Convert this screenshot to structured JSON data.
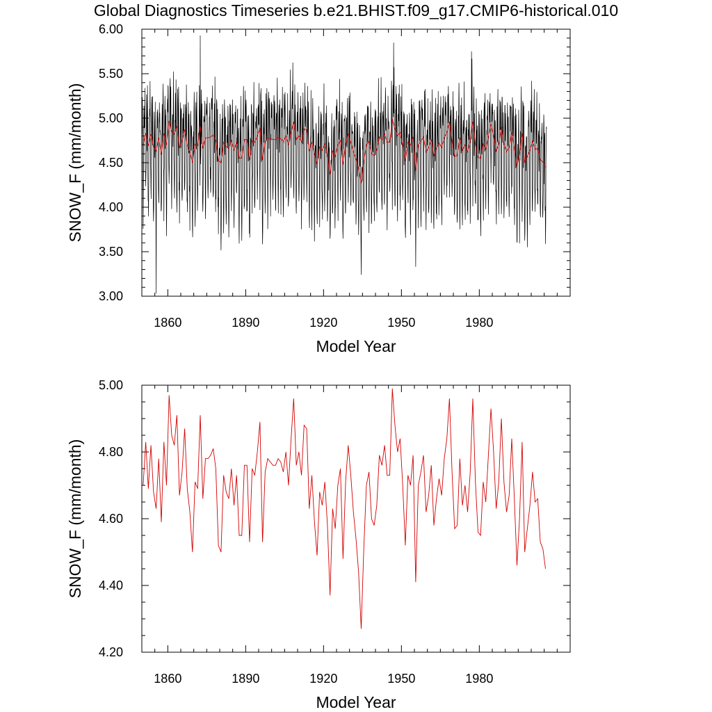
{
  "title": "Global Diagnostics Timeseries b.e21.BHIST.f09_g17.CMIP6-historical.010",
  "colors": {
    "monthly": "#000000",
    "annual": "#d40000",
    "axis": "#000000"
  },
  "chart_data": [
    {
      "type": "line",
      "xlabel": "Model Year",
      "ylabel": "SNOW_F (mm/month)",
      "xlim": [
        1850,
        2015
      ],
      "ylim": [
        3.0,
        6.0
      ],
      "xticks": [
        1860,
        1890,
        1920,
        1950,
        1980
      ],
      "xtick_labels": [
        "1860",
        "1890",
        "1920",
        "1950",
        "1980"
      ],
      "yticks": [
        3.0,
        3.5,
        4.0,
        4.5,
        5.0,
        5.5,
        6.0
      ],
      "ytick_labels": [
        "3.00",
        "3.50",
        "4.00",
        "4.50",
        "5.00",
        "5.50",
        "6.00"
      ],
      "series": [
        {
          "role": "monthly",
          "color": "#000000",
          "x_start": 1850,
          "x_step": 0.0833333,
          "monthly_pattern": [
            4.78,
            4.95,
            5.2,
            4.9,
            4.45,
            4.15,
            3.95,
            4.1,
            4.55,
            4.9,
            5.05,
            5.0
          ]
        },
        {
          "role": "annual",
          "color": "#d40000",
          "x_start": 1850.5,
          "x_step": 1,
          "values_ref": "annual_mean"
        }
      ],
      "monthly_extremes": [
        [
          1855.5,
          3.03
        ],
        [
          1872.5,
          5.93
        ],
        [
          1934.5,
          3.24
        ],
        [
          1947.0,
          5.85
        ],
        [
          1955.5,
          3.33
        ],
        [
          1977.0,
          5.75
        ]
      ],
      "grid": false
    },
    {
      "type": "line",
      "xlabel": "Model Year",
      "ylabel": "SNOW_F (mm/month)",
      "xlim": [
        1850,
        2015
      ],
      "ylim": [
        4.2,
        5.0
      ],
      "xticks": [
        1860,
        1890,
        1920,
        1950,
        1980
      ],
      "xtick_labels": [
        "1860",
        "1890",
        "1920",
        "1950",
        "1980"
      ],
      "yticks": [
        4.2,
        4.4,
        4.6,
        4.8,
        5.0
      ],
      "ytick_labels": [
        "4.20",
        "4.40",
        "4.60",
        "4.80",
        "5.00"
      ],
      "series": [
        {
          "role": "annual",
          "color": "#d40000",
          "x_start": 1850.5,
          "x_step": 1,
          "values_ref": "annual_mean"
        }
      ],
      "grid": false
    }
  ],
  "annual_mean": [
    4.7,
    4.83,
    4.69,
    4.82,
    4.68,
    4.63,
    4.78,
    4.59,
    4.83,
    4.7,
    4.97,
    4.85,
    4.82,
    4.91,
    4.67,
    4.74,
    4.87,
    4.69,
    4.62,
    4.5,
    4.71,
    4.69,
    4.91,
    4.66,
    4.78,
    4.78,
    4.79,
    4.81,
    4.75,
    4.52,
    4.5,
    4.73,
    4.68,
    4.66,
    4.75,
    4.64,
    4.73,
    4.55,
    4.55,
    4.76,
    4.76,
    4.53,
    4.75,
    4.73,
    4.8,
    4.89,
    4.53,
    4.74,
    4.78,
    4.77,
    4.76,
    4.76,
    4.78,
    4.77,
    4.74,
    4.8,
    4.7,
    4.84,
    4.96,
    4.76,
    4.8,
    4.73,
    4.88,
    4.87,
    4.63,
    4.73,
    4.59,
    4.49,
    4.68,
    4.64,
    4.71,
    4.58,
    4.37,
    4.63,
    4.57,
    4.7,
    4.75,
    4.48,
    4.71,
    4.82,
    4.73,
    4.62,
    4.54,
    4.44,
    4.27,
    4.51,
    4.7,
    4.74,
    4.6,
    4.58,
    4.64,
    4.79,
    4.76,
    4.82,
    4.73,
    4.73,
    4.99,
    4.88,
    4.8,
    4.84,
    4.7,
    4.52,
    4.73,
    4.7,
    4.79,
    4.41,
    4.7,
    4.74,
    4.79,
    4.62,
    4.67,
    4.76,
    4.58,
    4.66,
    4.72,
    4.67,
    4.78,
    4.84,
    4.96,
    4.74,
    4.57,
    4.58,
    4.78,
    4.64,
    4.7,
    4.62,
    4.74,
    4.96,
    4.71,
    4.56,
    4.55,
    4.71,
    4.65,
    4.79,
    4.93,
    4.8,
    4.63,
    4.71,
    4.9,
    4.71,
    4.62,
    4.67,
    4.84,
    4.66,
    4.46,
    4.6,
    4.83,
    4.5,
    4.57,
    4.64,
    4.74,
    4.65,
    4.66,
    4.53,
    4.51,
    4.45
  ]
}
